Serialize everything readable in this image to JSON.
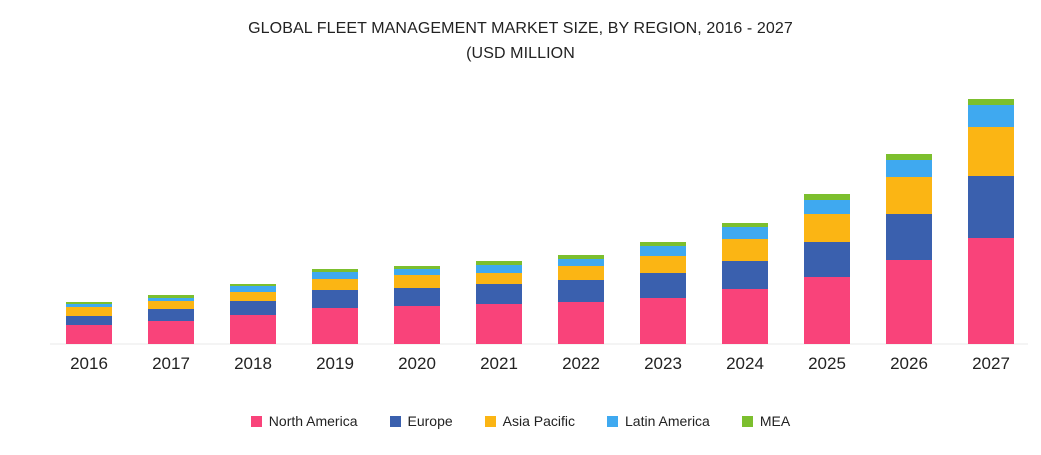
{
  "chart_data": {
    "type": "bar",
    "stacked": true,
    "title": "GLOBAL FLEET MANAGEMENT MARKET SIZE, BY REGION, 2016 - 2027",
    "subtitle": "(USD MILLION",
    "xlabel": "",
    "ylabel": "",
    "y_axis_visible": false,
    "grid": false,
    "value_unit_note": "relative units estimated from bar heights (no y-axis shown)",
    "ylim": [
      0,
      250
    ],
    "categories": [
      "2016",
      "2017",
      "2018",
      "2019",
      "2020",
      "2021",
      "2022",
      "2023",
      "2024",
      "2025",
      "2026",
      "2027"
    ],
    "series": [
      {
        "name": "North America",
        "color": "#f9437a",
        "values": [
          19,
          23,
          29,
          36,
          38,
          40,
          42,
          46,
          55,
          67,
          84,
          106
        ]
      },
      {
        "name": "Europe",
        "color": "#3a60ae",
        "values": [
          9,
          12,
          14,
          18,
          18,
          20,
          22,
          25,
          28,
          35,
          46,
          62
        ]
      },
      {
        "name": "Asia Pacific",
        "color": "#fbb514",
        "values": [
          9,
          8,
          9,
          11,
          13,
          11,
          14,
          17,
          22,
          28,
          37,
          49
        ]
      },
      {
        "name": "Latin America",
        "color": "#3fa9f0",
        "values": [
          3,
          3,
          6,
          7,
          6,
          8,
          7,
          10,
          12,
          14,
          17,
          22
        ]
      },
      {
        "name": "MEA",
        "color": "#7cbf2e",
        "values": [
          2,
          3,
          2,
          3,
          3,
          4,
          4,
          4,
          4,
          6,
          6,
          6
        ]
      }
    ],
    "legend_position": "bottom-center"
  }
}
